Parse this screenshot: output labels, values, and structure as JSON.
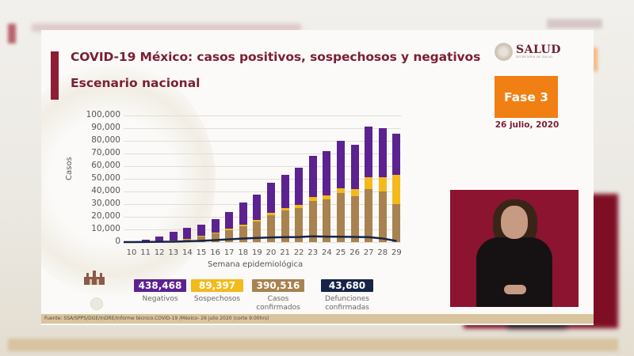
{
  "slide": {
    "title": "COVID-19 México: casos positivos, sospechosos y negativos",
    "subtitle": "Escenario nacional",
    "logo_name": "SALUD",
    "logo_sub": "SECRETARÍA DE SALUD",
    "phase": "Fase 3",
    "date": "26 julio, 2020",
    "source": "Fuente: SSA/SPPS/DGE/InDRE/Informe técnico.COVID-19 /México- 26 julio 2020 (corte 9:00hrs)"
  },
  "colors": {
    "negativos": "#5b2290",
    "sospechosos": "#f4b91a",
    "confirmados": "#a8824f",
    "defunciones": "#162447",
    "accent": "#8e1d33",
    "phase": "#f07f14"
  },
  "summary": [
    {
      "value": "438,468",
      "label": "Negativos",
      "color": "#5b2290",
      "text_color": "#ffffff"
    },
    {
      "value": "89,397",
      "label": "Sospechosos",
      "color": "#f4b91a",
      "text_color": "#ffffff"
    },
    {
      "value": "390,516",
      "label": "Casos confirmados",
      "color": "#a8824f",
      "text_color": "#ffffff"
    },
    {
      "value": "43,680",
      "label": "Defunciones confirmadas",
      "color": "#162447",
      "text_color": "#ffffff"
    }
  ],
  "chart_data": {
    "type": "bar",
    "stacked": true,
    "title": "COVID-19 México: casos positivos, sospechosos y negativos",
    "subtitle": "Escenario nacional",
    "xlabel": "Semana epidemiológica",
    "ylabel": "Casos",
    "ylim": [
      0,
      100000
    ],
    "yticks": [
      "0",
      "10,000",
      "20,000",
      "30,000",
      "40,000",
      "50,000",
      "60,000",
      "70,000",
      "80,000",
      "90,000",
      "100,000"
    ],
    "grid": true,
    "legend_position": "bottom (summary tiles)",
    "categories": [
      "10",
      "11",
      "12",
      "13",
      "14",
      "15",
      "16",
      "17",
      "18",
      "19",
      "20",
      "21",
      "22",
      "23",
      "24",
      "25",
      "26",
      "27",
      "28",
      "29"
    ],
    "series": [
      {
        "name": "Casos confirmados",
        "type": "bar",
        "values": [
          100,
          300,
          500,
          1000,
          2500,
          4500,
          7000,
          9500,
          12500,
          16500,
          21500,
          25000,
          27000,
          32500,
          34000,
          38500,
          36500,
          42000,
          40000,
          30000
        ]
      },
      {
        "name": "Sospechosos",
        "type": "bar",
        "values": [
          0,
          0,
          0,
          100,
          300,
          500,
          500,
          1000,
          1000,
          1000,
          1500,
          2000,
          2500,
          3000,
          3000,
          4000,
          5500,
          9000,
          11000,
          23000
        ]
      },
      {
        "name": "Negativos",
        "type": "bar",
        "values": [
          100,
          1700,
          3900,
          7300,
          8200,
          8800,
          10900,
          13500,
          17500,
          20100,
          24000,
          26400,
          29300,
          32500,
          34600,
          37300,
          34600,
          40400,
          39000,
          32400
        ]
      },
      {
        "name": "Defunciones confirmadas",
        "type": "line",
        "values": [
          0,
          100,
          200,
          300,
          600,
          1000,
          1600,
          2200,
          2800,
          3300,
          3700,
          3900,
          4000,
          4500,
          4300,
          4200,
          4100,
          3900,
          2800,
          900
        ]
      }
    ]
  }
}
